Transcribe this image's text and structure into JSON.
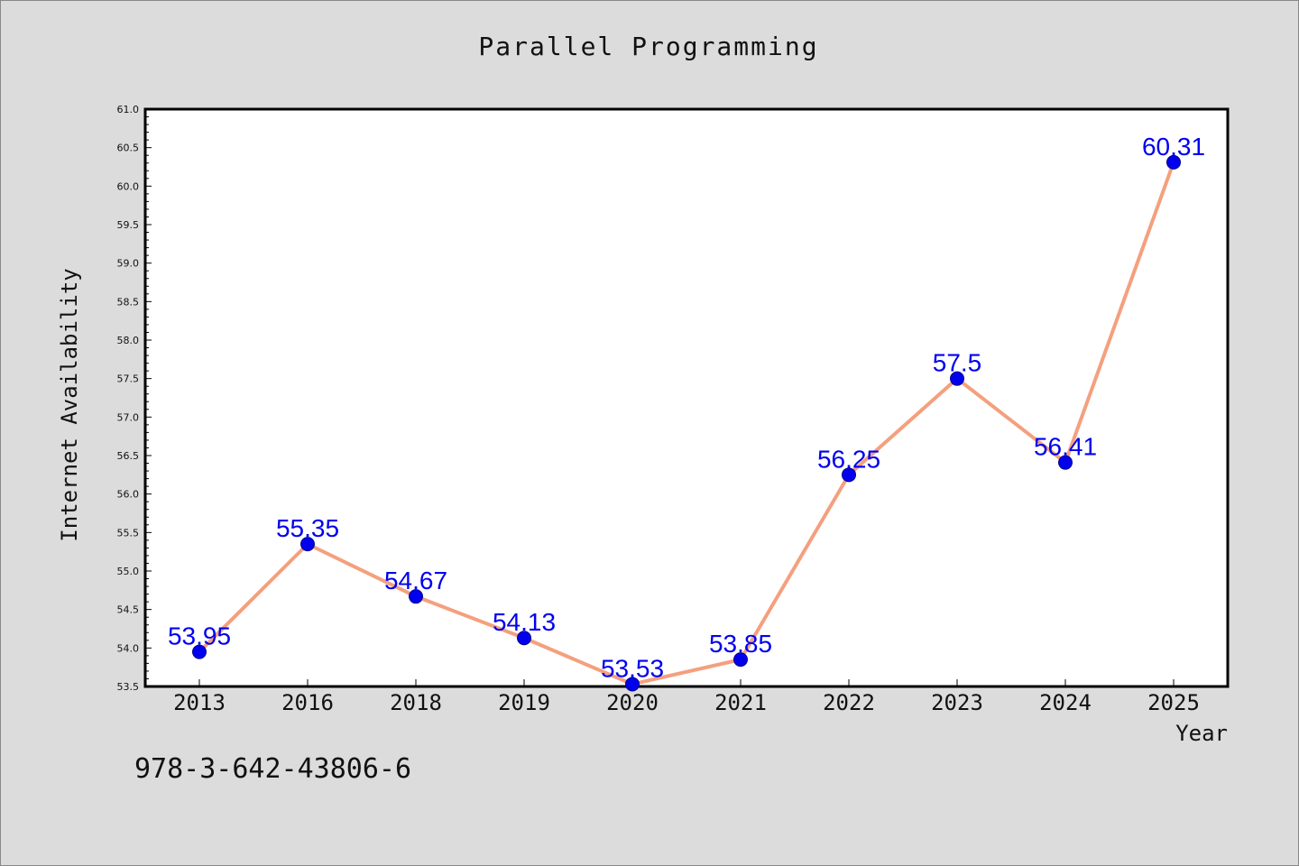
{
  "title": "Parallel Programming",
  "footer_id": "978-3-642-43806-6",
  "colors": {
    "background": "#dcdcdc",
    "plot_background": "#ffffff",
    "line": "#f4a07e",
    "marker": "#0000ee",
    "data_label": "#0000ee"
  },
  "chart_data": {
    "type": "line",
    "title": "Parallel Programming",
    "xlabel": "Year",
    "ylabel": "Internet Availability",
    "categories": [
      "2013",
      "2016",
      "2018",
      "2019",
      "2020",
      "2021",
      "2022",
      "2023",
      "2024",
      "2025"
    ],
    "values": [
      53.95,
      55.35,
      54.67,
      54.13,
      53.53,
      53.85,
      56.25,
      57.5,
      56.41,
      60.31
    ],
    "data_labels": [
      "53.95",
      "55.35",
      "54.67",
      "54.13",
      "53.53",
      "53.85",
      "56.25",
      "57.5",
      "56.41",
      "60.31"
    ],
    "ylim": [
      53.5,
      61.0
    ],
    "yticks": [
      "53.5",
      "54.0",
      "54.5",
      "55.0",
      "55.5",
      "56.0",
      "56.5",
      "57.0",
      "57.5",
      "58.0",
      "58.5",
      "59.0",
      "59.5",
      "60.0",
      "60.5",
      "61.0"
    ],
    "grid": false,
    "legend": "none"
  }
}
